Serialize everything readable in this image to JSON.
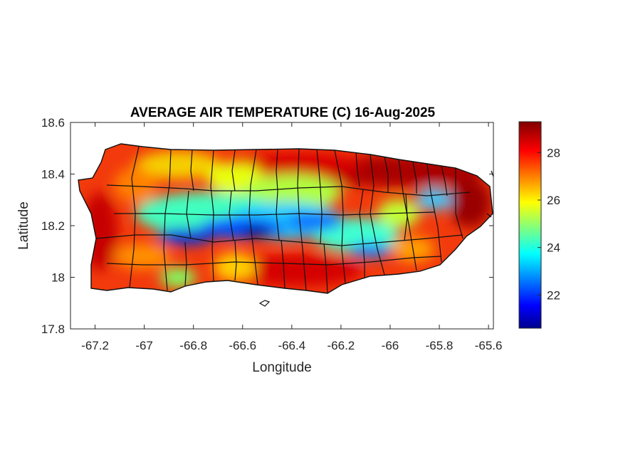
{
  "chart_data": {
    "type": "heatmap",
    "title": "AVERAGE AIR TEMPERATURE (C) 16-Aug-2025",
    "xlabel": "Longitude",
    "ylabel": "Latitude",
    "xlim": [
      -67.3,
      -65.58
    ],
    "ylim": [
      17.8,
      18.6
    ],
    "x_ticks": [
      -67.2,
      -67,
      -66.8,
      -66.6,
      -66.4,
      -66.2,
      -66,
      -65.8,
      -65.6
    ],
    "x_tick_labels": [
      "-67.2",
      "-67",
      "-66.8",
      "-66.6",
      "-66.4",
      "-66.2",
      "-66",
      "-65.8",
      "-65.6"
    ],
    "y_ticks": [
      17.8,
      18,
      18.2,
      18.4,
      18.6
    ],
    "y_tick_labels": [
      "17.8",
      "18",
      "18.2",
      "18.4",
      "18.6"
    ],
    "colormap": "jet",
    "colorbar": {
      "range": [
        20.6,
        29.3
      ],
      "ticks": [
        22,
        24,
        26,
        28
      ],
      "tick_labels": [
        "22",
        "24",
        "26",
        "28"
      ]
    },
    "grid": false,
    "region": "Puerto Rico (municipality boundaries)",
    "warm_spots": [
      {
        "lon": -66.05,
        "lat": 18.42,
        "temp": 29.2
      },
      {
        "lon": -65.65,
        "lat": 18.28,
        "temp": 29.0
      },
      {
        "lon": -67.18,
        "lat": 18.15,
        "temp": 28.8
      },
      {
        "lon": -66.5,
        "lat": 17.98,
        "temp": 28.4
      },
      {
        "lon": -66.8,
        "lat": 18.45,
        "temp": 28.0
      },
      {
        "lon": -66.3,
        "lat": 18.44,
        "temp": 28.5
      }
    ],
    "cool_spots": [
      {
        "lon": -66.55,
        "lat": 18.2,
        "temp": 21.0
      },
      {
        "lon": -66.85,
        "lat": 18.15,
        "temp": 21.5
      },
      {
        "lon": -66.38,
        "lat": 18.2,
        "temp": 22.0
      },
      {
        "lon": -66.12,
        "lat": 18.1,
        "temp": 22.0
      },
      {
        "lon": -65.8,
        "lat": 18.3,
        "temp": 23.2
      }
    ]
  }
}
